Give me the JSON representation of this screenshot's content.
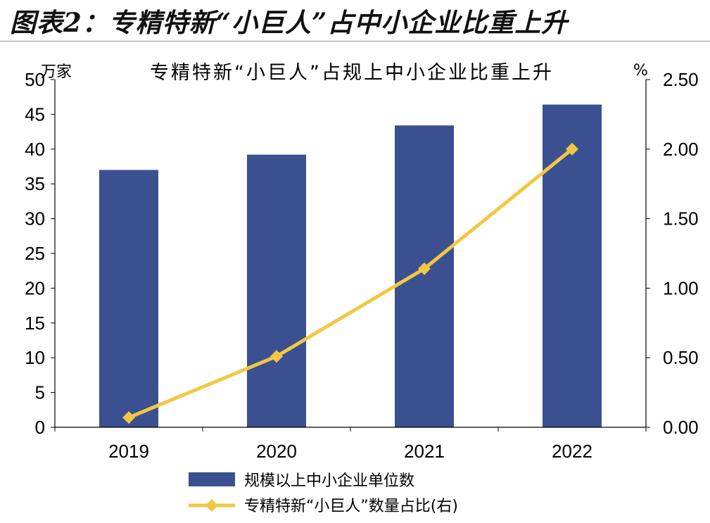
{
  "figure_heading": "图表2：专精特新“小巨人”占中小企业比重上升",
  "chart_data": {
    "type": "bar",
    "title": "专精特新“小巨人”占规上中小企业比重上升",
    "categories": [
      "2019",
      "2020",
      "2021",
      "2022"
    ],
    "y_left": {
      "unit": "万家",
      "range": [
        0,
        50
      ],
      "ticks": [
        0,
        5,
        10,
        15,
        20,
        25,
        30,
        35,
        40,
        45,
        50
      ]
    },
    "y_right": {
      "unit": "%",
      "range": [
        0,
        2.5
      ],
      "ticks": [
        "0.00",
        "0.50",
        "1.00",
        "1.50",
        "2.00",
        "2.50"
      ]
    },
    "series": [
      {
        "name": "规模以上中小企业单位数",
        "type": "bar",
        "axis": "left",
        "color": "#3a5090",
        "values": [
          37.0,
          39.2,
          43.4,
          46.4
        ]
      },
      {
        "name": "专精特新“小巨人”数量占比(右)",
        "type": "line",
        "axis": "right",
        "color": "#f2c744",
        "marker": "diamond",
        "values": [
          0.07,
          0.51,
          1.14,
          2.0
        ]
      }
    ],
    "grid": false,
    "legend": "bottom"
  }
}
